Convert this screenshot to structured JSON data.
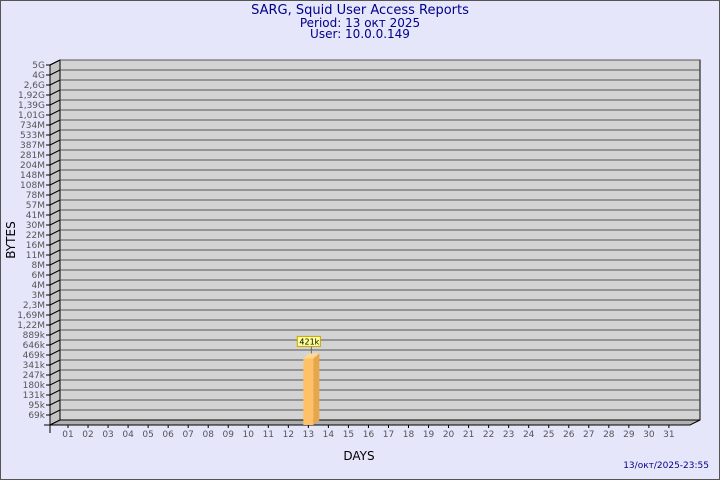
{
  "header": {
    "title": "SARG, Squid User Access Reports",
    "period": "Period: 13 окт 2025",
    "user": "User: 10.0.0.149"
  },
  "footer": {
    "timestamp": "13/окт/2025-23:55"
  },
  "colors": {
    "background": "#e6e6fa",
    "plot": "#d3d3d3",
    "bar": "#ffc168",
    "text": "#00008b",
    "label_box": "#ffff99"
  },
  "chart_data": {
    "type": "bar",
    "title": "",
    "xlabel": "DAYS",
    "ylabel": "BYTES",
    "y_scale": "log",
    "y_tick_labels": [
      "5G",
      "4G",
      "2,6G",
      "1,92G",
      "1,39G",
      "1,01G",
      "734M",
      "533M",
      "387M",
      "281M",
      "204M",
      "148M",
      "108M",
      "78M",
      "57M",
      "41M",
      "30M",
      "22M",
      "16M",
      "11M",
      "8M",
      "6M",
      "4M",
      "3M",
      "2,3M",
      "1,69M",
      "1,22M",
      "889k",
      "646k",
      "469k",
      "341k",
      "247k",
      "180k",
      "131k",
      "95k",
      "69k"
    ],
    "categories": [
      "01",
      "02",
      "03",
      "04",
      "05",
      "06",
      "07",
      "08",
      "09",
      "10",
      "11",
      "12",
      "13",
      "14",
      "15",
      "16",
      "17",
      "18",
      "19",
      "20",
      "21",
      "22",
      "23",
      "24",
      "25",
      "26",
      "27",
      "28",
      "29",
      "30",
      "31"
    ],
    "values": [
      null,
      null,
      null,
      null,
      null,
      null,
      null,
      null,
      null,
      null,
      null,
      null,
      421000,
      null,
      null,
      null,
      null,
      null,
      null,
      null,
      null,
      null,
      null,
      null,
      null,
      null,
      null,
      null,
      null,
      null,
      null
    ],
    "data_labels": {
      "13": "421k"
    },
    "grid": true,
    "style": "3d"
  }
}
